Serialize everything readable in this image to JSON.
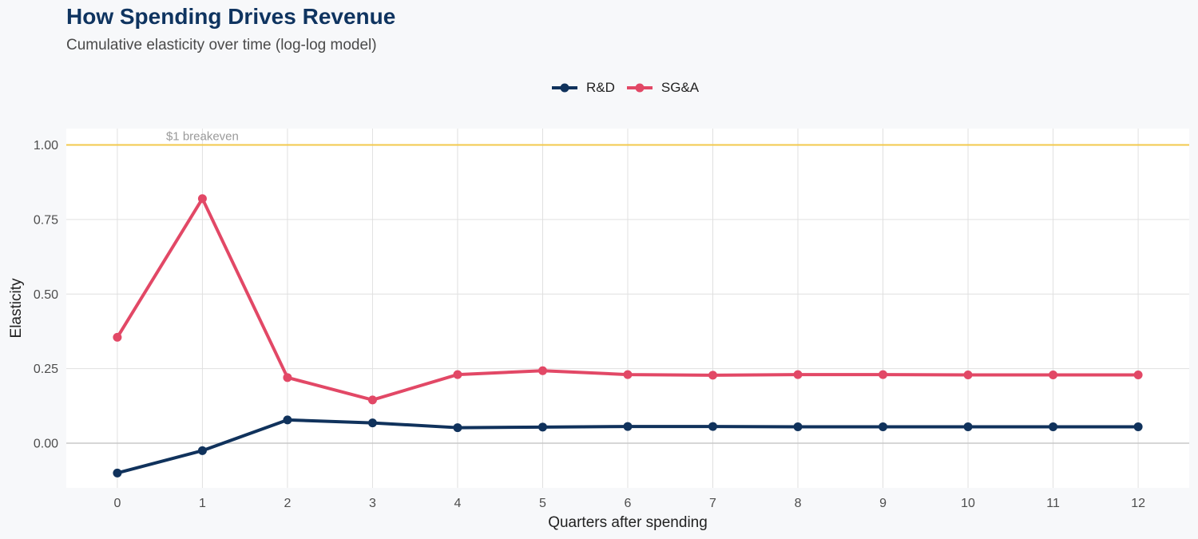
{
  "header": {
    "title": "How Spending Drives Revenue",
    "subtitle": "Cumulative elasticity over time (log-log model)"
  },
  "colors": {
    "rd": "#10325c",
    "sga": "#e24866",
    "breakeven": "#f2c94c",
    "grid": "#e0e0e0",
    "zero": "#c8c8c8",
    "panel": "#ffffff"
  },
  "chart_data": {
    "type": "line",
    "title": "How Spending Drives Revenue",
    "subtitle": "Cumulative elasticity over time (log-log model)",
    "xlabel": "Quarters after spending",
    "ylabel": "Elasticity",
    "x": [
      0,
      1,
      2,
      3,
      4,
      5,
      6,
      7,
      8,
      9,
      10,
      11,
      12
    ],
    "x_ticks": [
      "0",
      "1",
      "2",
      "3",
      "4",
      "5",
      "6",
      "7",
      "8",
      "9",
      "10",
      "11",
      "12"
    ],
    "y_ticks": [
      "0.00",
      "0.25",
      "0.50",
      "0.75",
      "1.00"
    ],
    "y_tick_values": [
      0,
      0.25,
      0.5,
      0.75,
      1.0
    ],
    "xlim": [
      -0.6,
      12.6
    ],
    "ylim": [
      -0.15,
      1.055
    ],
    "legend_position": "top",
    "series": [
      {
        "name": "R&D",
        "color": "#10325c",
        "values": [
          -0.1,
          -0.025,
          0.078,
          0.068,
          0.052,
          0.054,
          0.056,
          0.056,
          0.055,
          0.055,
          0.055,
          0.055,
          0.055
        ]
      },
      {
        "name": "SG&A",
        "color": "#e24866",
        "values": [
          0.355,
          0.82,
          0.22,
          0.145,
          0.23,
          0.243,
          0.23,
          0.228,
          0.23,
          0.23,
          0.229,
          0.229,
          0.229
        ]
      }
    ],
    "reference_lines": [
      {
        "y": 1.0,
        "label": "$1 breakeven",
        "label_x": 1.0
      },
      {
        "y": 0.0,
        "label": ""
      }
    ]
  }
}
